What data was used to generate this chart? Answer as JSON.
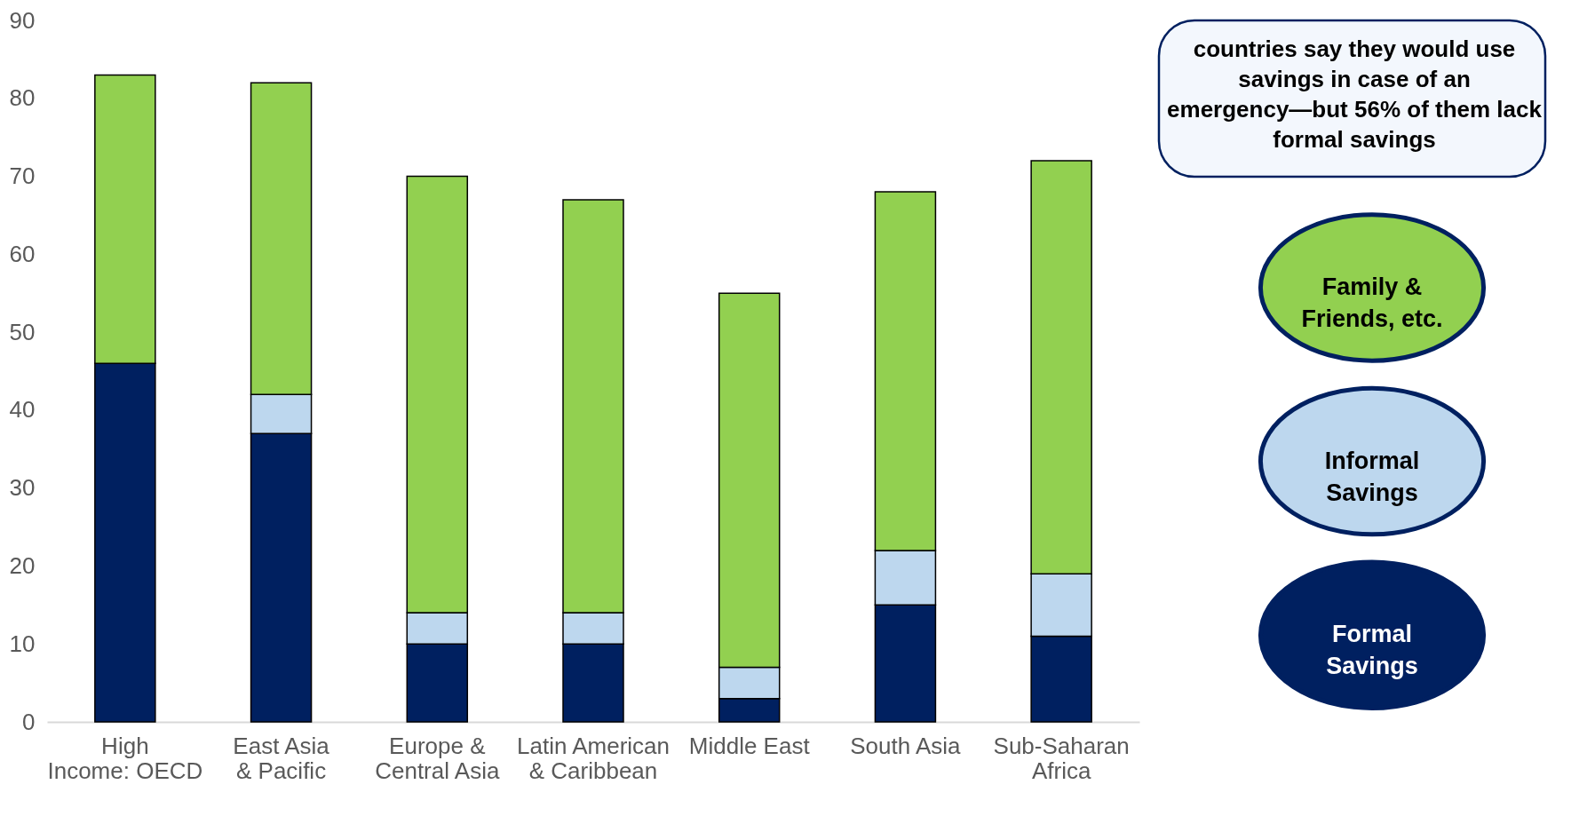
{
  "chart_data": {
    "type": "bar",
    "stacked": true,
    "categories": [
      "High Income: OECD",
      "East Asia & Pacific",
      "Europe & Central Asia",
      "Latin American & Caribbean",
      "Middle East",
      "South Asia",
      "Sub-Saharan Africa"
    ],
    "series": [
      {
        "name": "Formal Savings",
        "color": "#002060",
        "values": [
          46,
          37,
          10,
          10,
          3,
          15,
          11
        ]
      },
      {
        "name": "Informal Savings",
        "color": "#bdd7ee",
        "values": [
          0,
          5,
          4,
          4,
          4,
          7,
          8
        ]
      },
      {
        "name": "Family & Friends, etc.",
        "color": "#92d050",
        "values": [
          37,
          40,
          56,
          53,
          48,
          46,
          53
        ]
      }
    ],
    "ylim": [
      0,
      90
    ],
    "yticks": [
      0,
      10,
      20,
      30,
      40,
      50,
      60,
      70,
      80,
      90
    ],
    "grid": false,
    "legend": "right",
    "annotations": [
      "countries say they would use savings in case of an emergency—but 56% of them lack formal savings"
    ]
  }
}
